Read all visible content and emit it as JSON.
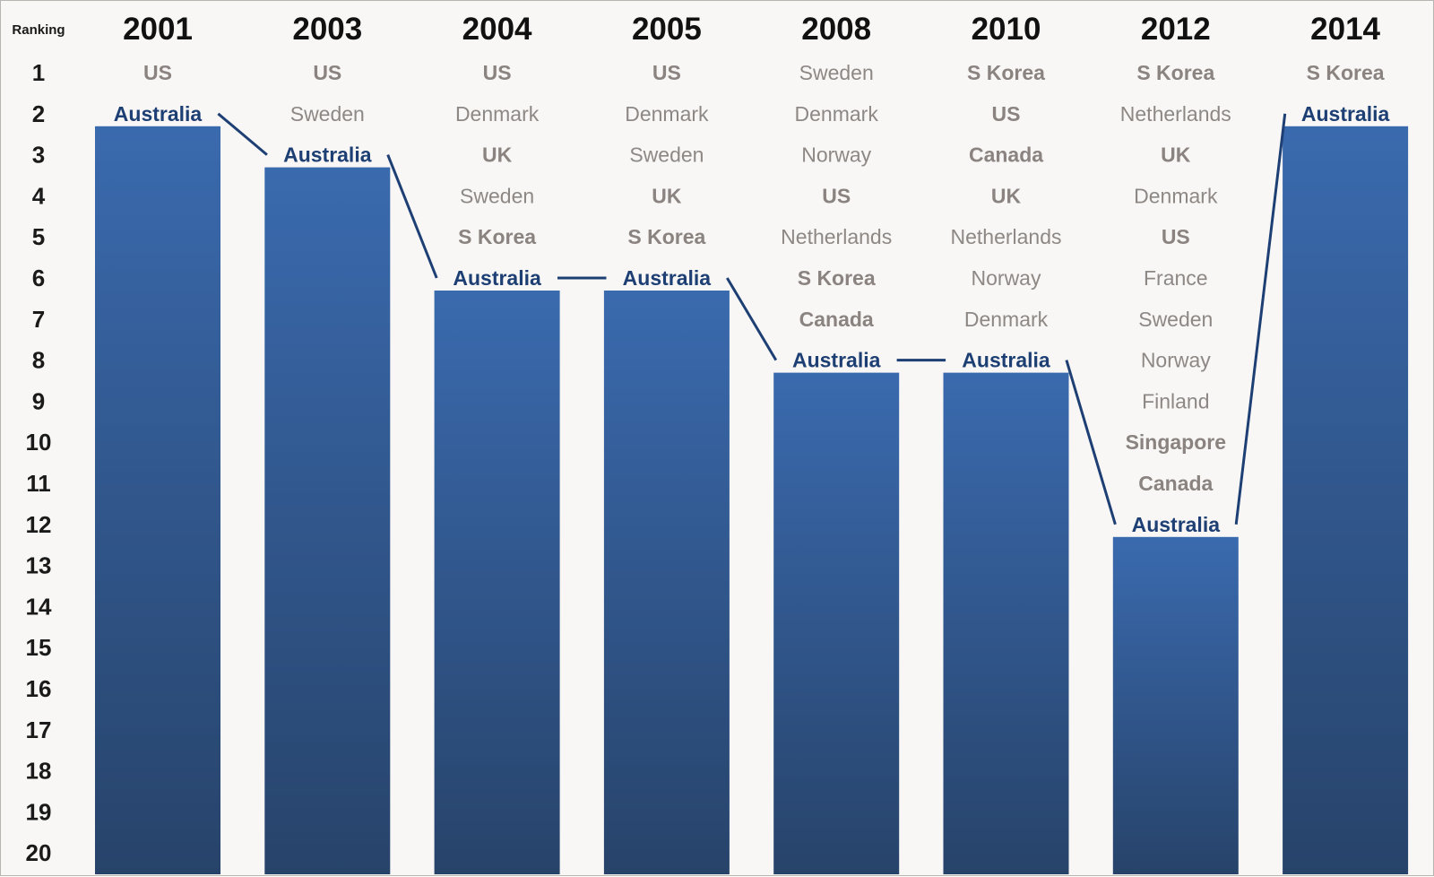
{
  "chart_data": {
    "type": "bar",
    "ylabel": "Ranking",
    "ylim": [
      1,
      20
    ],
    "y_inverted": true,
    "ranks": [
      "1",
      "2",
      "3",
      "4",
      "5",
      "6",
      "7",
      "8",
      "9",
      "10",
      "11",
      "12",
      "13",
      "14",
      "15",
      "16",
      "17",
      "18",
      "19",
      "20"
    ],
    "categories": [
      "2001",
      "2003",
      "2004",
      "2005",
      "2008",
      "2010",
      "2012",
      "2014"
    ],
    "series": [
      {
        "values": [
          2,
          3,
          6,
          6,
          8,
          8,
          12,
          2
        ]
      }
    ],
    "highlight": "Australia",
    "rankings": [
      {
        "year": "2001",
        "entries": [
          {
            "rank": 1,
            "name": "US",
            "bold": true
          },
          {
            "rank": 2,
            "name": "Australia",
            "highlight": true
          }
        ]
      },
      {
        "year": "2003",
        "entries": [
          {
            "rank": 1,
            "name": "US",
            "bold": true
          },
          {
            "rank": 2,
            "name": "Sweden"
          },
          {
            "rank": 3,
            "name": "Australia",
            "highlight": true
          }
        ]
      },
      {
        "year": "2004",
        "entries": [
          {
            "rank": 1,
            "name": "US",
            "bold": true
          },
          {
            "rank": 2,
            "name": "Denmark"
          },
          {
            "rank": 3,
            "name": "UK",
            "bold": true
          },
          {
            "rank": 4,
            "name": "Sweden"
          },
          {
            "rank": 5,
            "name": "S Korea",
            "bold": true
          },
          {
            "rank": 6,
            "name": "Australia",
            "highlight": true
          }
        ]
      },
      {
        "year": "2005",
        "entries": [
          {
            "rank": 1,
            "name": "US",
            "bold": true
          },
          {
            "rank": 2,
            "name": "Denmark"
          },
          {
            "rank": 3,
            "name": "Sweden"
          },
          {
            "rank": 4,
            "name": "UK",
            "bold": true
          },
          {
            "rank": 5,
            "name": "S Korea",
            "bold": true
          },
          {
            "rank": 6,
            "name": "Australia",
            "highlight": true
          }
        ]
      },
      {
        "year": "2008",
        "entries": [
          {
            "rank": 1,
            "name": "Sweden"
          },
          {
            "rank": 2,
            "name": "Denmark"
          },
          {
            "rank": 3,
            "name": "Norway"
          },
          {
            "rank": 4,
            "name": "US",
            "bold": true
          },
          {
            "rank": 5,
            "name": "Netherlands"
          },
          {
            "rank": 6,
            "name": "S Korea",
            "bold": true
          },
          {
            "rank": 7,
            "name": "Canada",
            "bold": true
          },
          {
            "rank": 8,
            "name": "Australia",
            "highlight": true
          }
        ]
      },
      {
        "year": "2010",
        "entries": [
          {
            "rank": 1,
            "name": "S Korea",
            "bold": true
          },
          {
            "rank": 2,
            "name": "US",
            "bold": true
          },
          {
            "rank": 3,
            "name": "Canada",
            "bold": true
          },
          {
            "rank": 4,
            "name": "UK",
            "bold": true
          },
          {
            "rank": 5,
            "name": "Netherlands"
          },
          {
            "rank": 6,
            "name": "Norway"
          },
          {
            "rank": 7,
            "name": "Denmark"
          },
          {
            "rank": 8,
            "name": "Australia",
            "highlight": true
          }
        ]
      },
      {
        "year": "2012",
        "entries": [
          {
            "rank": 1,
            "name": "S Korea",
            "bold": true
          },
          {
            "rank": 2,
            "name": "Netherlands"
          },
          {
            "rank": 3,
            "name": "UK",
            "bold": true
          },
          {
            "rank": 4,
            "name": "Denmark"
          },
          {
            "rank": 5,
            "name": "US",
            "bold": true
          },
          {
            "rank": 6,
            "name": "France"
          },
          {
            "rank": 7,
            "name": "Sweden"
          },
          {
            "rank": 8,
            "name": "Norway"
          },
          {
            "rank": 9,
            "name": "Finland"
          },
          {
            "rank": 10,
            "name": "Singapore",
            "bold": true
          },
          {
            "rank": 11,
            "name": "Canada",
            "bold": true
          },
          {
            "rank": 12,
            "name": "Australia",
            "highlight": true
          }
        ]
      },
      {
        "year": "2014",
        "entries": [
          {
            "rank": 1,
            "name": "S Korea",
            "bold": true
          },
          {
            "rank": 2,
            "name": "Australia",
            "highlight": true
          }
        ]
      }
    ],
    "colors": {
      "bar_top": "#3a6aae",
      "bar_bottom": "#27436a",
      "highlight_text": "#1d3f73",
      "connector": "#1d3f73",
      "country_text": "#8e8885",
      "background": "#f8f7f6"
    },
    "grid": false,
    "legend": "none"
  }
}
